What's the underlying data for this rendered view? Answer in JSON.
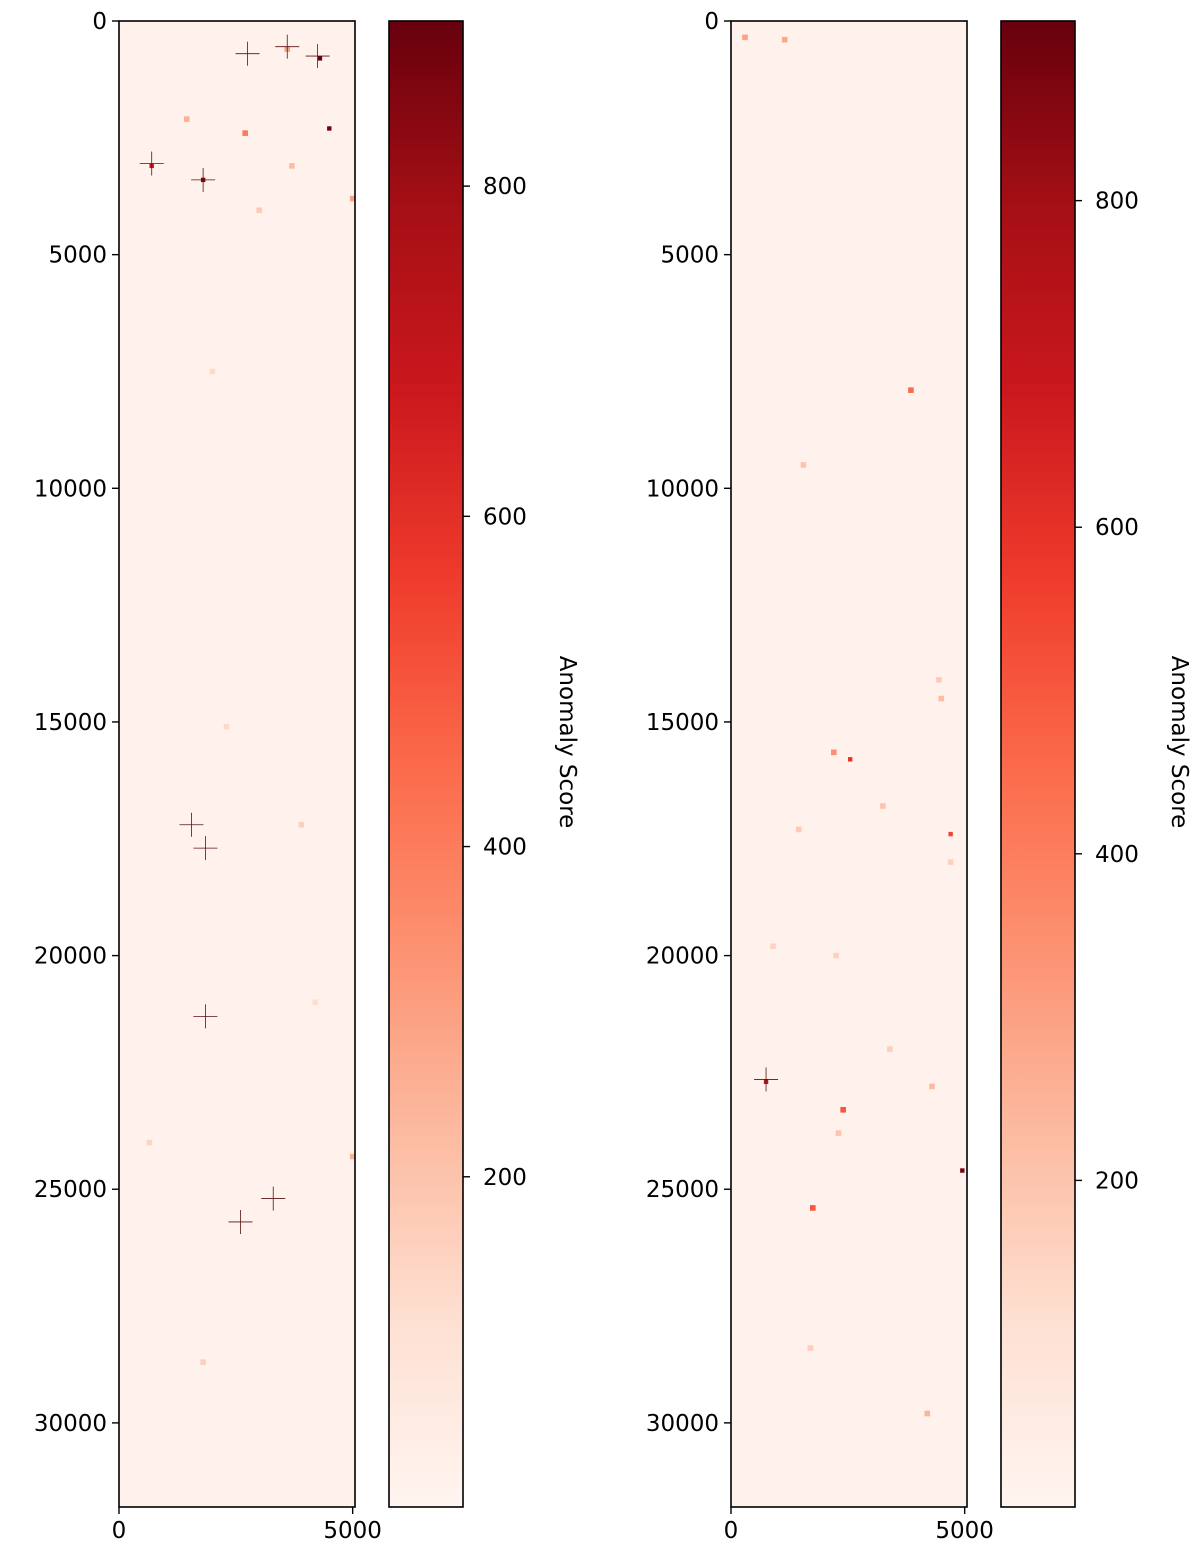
{
  "chart_data": [
    {
      "type": "heatmap",
      "title": "",
      "xlabel": "",
      "ylabel": "",
      "xlim": [
        0,
        5050
      ],
      "ylim": [
        31800,
        0
      ],
      "x_ticks": [
        0,
        5000
      ],
      "x_tick_labels": [
        "0",
        "5000"
      ],
      "y_ticks": [
        0,
        5000,
        10000,
        15000,
        20000,
        25000,
        30000
      ],
      "y_tick_labels": [
        "0",
        "5000",
        "10000",
        "15000",
        "20000",
        "25000",
        "30000"
      ],
      "grid": false,
      "background_value": 15,
      "colormap": [
        "#fff5f0",
        "#fee0d2",
        "#fcbba1",
        "#fc9272",
        "#fb6a4a",
        "#ef3b2c",
        "#cb181d",
        "#a50f15",
        "#67000d"
      ],
      "colorbar": {
        "label": "Anomaly Score",
        "range": [
          0,
          900
        ],
        "ticks": [
          200,
          400,
          600,
          800
        ],
        "tick_labels": [
          "200",
          "400",
          "600",
          "800"
        ]
      },
      "hotspots": [
        {
          "x": 700,
          "y": 3100,
          "value": 700
        },
        {
          "x": 1800,
          "y": 3400,
          "value": 850
        },
        {
          "x": 4300,
          "y": 800,
          "value": 900
        },
        {
          "x": 4500,
          "y": 2300,
          "value": 880
        },
        {
          "x": 3600,
          "y": 600,
          "value": 300
        },
        {
          "x": 2700,
          "y": 2400,
          "value": 400
        },
        {
          "x": 1450,
          "y": 2100,
          "value": 250
        },
        {
          "x": 3000,
          "y": 4050,
          "value": 180
        },
        {
          "x": 3700,
          "y": 3100,
          "value": 220
        },
        {
          "x": 5000,
          "y": 3800,
          "value": 300
        },
        {
          "x": 5000,
          "y": 24300,
          "value": 250
        },
        {
          "x": 650,
          "y": 24000,
          "value": 150
        },
        {
          "x": 2000,
          "y": 7500,
          "value": 130
        },
        {
          "x": 1800,
          "y": 28700,
          "value": 160
        },
        {
          "x": 3900,
          "y": 17200,
          "value": 160
        },
        {
          "x": 2300,
          "y": 15100,
          "value": 130
        },
        {
          "x": 4200,
          "y": 21000,
          "value": 120
        }
      ],
      "markers": [
        {
          "x": 2750,
          "y": 700
        },
        {
          "x": 3600,
          "y": 550
        },
        {
          "x": 4250,
          "y": 750
        },
        {
          "x": 700,
          "y": 3050
        },
        {
          "x": 1800,
          "y": 3400
        },
        {
          "x": 1550,
          "y": 17200
        },
        {
          "x": 1850,
          "y": 17700
        },
        {
          "x": 1850,
          "y": 21300
        },
        {
          "x": 3300,
          "y": 25200
        },
        {
          "x": 2600,
          "y": 25700
        }
      ]
    },
    {
      "type": "heatmap",
      "title": "",
      "xlabel": "",
      "ylabel": "",
      "xlim": [
        0,
        5050
      ],
      "ylim": [
        31800,
        0
      ],
      "x_ticks": [
        0,
        5000
      ],
      "x_tick_labels": [
        "0",
        "5000"
      ],
      "y_ticks": [
        0,
        5000,
        10000,
        15000,
        20000,
        25000,
        30000
      ],
      "y_tick_labels": [
        "0",
        "5000",
        "10000",
        "15000",
        "20000",
        "25000",
        "30000"
      ],
      "grid": false,
      "background_value": 20,
      "colormap": [
        "#fff5f0",
        "#fee0d2",
        "#fcbba1",
        "#fc9272",
        "#fb6a4a",
        "#ef3b2c",
        "#cb181d",
        "#a50f15",
        "#67000d"
      ],
      "colorbar": {
        "label": "Anomaly Score",
        "range": [
          0,
          910
        ],
        "ticks": [
          200,
          400,
          600,
          800
        ],
        "tick_labels": [
          "200",
          "400",
          "600",
          "800"
        ]
      },
      "hotspots": [
        {
          "x": 750,
          "y": 22700,
          "value": 720
        },
        {
          "x": 4950,
          "y": 24600,
          "value": 880
        },
        {
          "x": 2400,
          "y": 23300,
          "value": 500
        },
        {
          "x": 3850,
          "y": 7900,
          "value": 450
        },
        {
          "x": 1750,
          "y": 25400,
          "value": 500
        },
        {
          "x": 2550,
          "y": 15800,
          "value": 600
        },
        {
          "x": 2200,
          "y": 15650,
          "value": 350
        },
        {
          "x": 4700,
          "y": 17400,
          "value": 550
        },
        {
          "x": 300,
          "y": 350,
          "value": 300
        },
        {
          "x": 1150,
          "y": 400,
          "value": 280
        },
        {
          "x": 4500,
          "y": 14500,
          "value": 220
        },
        {
          "x": 1450,
          "y": 17300,
          "value": 180
        },
        {
          "x": 1550,
          "y": 9500,
          "value": 200
        },
        {
          "x": 3250,
          "y": 16800,
          "value": 200
        },
        {
          "x": 3400,
          "y": 22000,
          "value": 170
        },
        {
          "x": 4300,
          "y": 22800,
          "value": 230
        },
        {
          "x": 4200,
          "y": 29800,
          "value": 250
        },
        {
          "x": 900,
          "y": 19800,
          "value": 150
        },
        {
          "x": 2300,
          "y": 23800,
          "value": 200
        },
        {
          "x": 1700,
          "y": 28400,
          "value": 170
        },
        {
          "x": 2250,
          "y": 20000,
          "value": 160
        },
        {
          "x": 4450,
          "y": 14100,
          "value": 180
        },
        {
          "x": 4700,
          "y": 18000,
          "value": 160
        }
      ],
      "markers": [
        {
          "x": 750,
          "y": 22650
        }
      ]
    }
  ]
}
